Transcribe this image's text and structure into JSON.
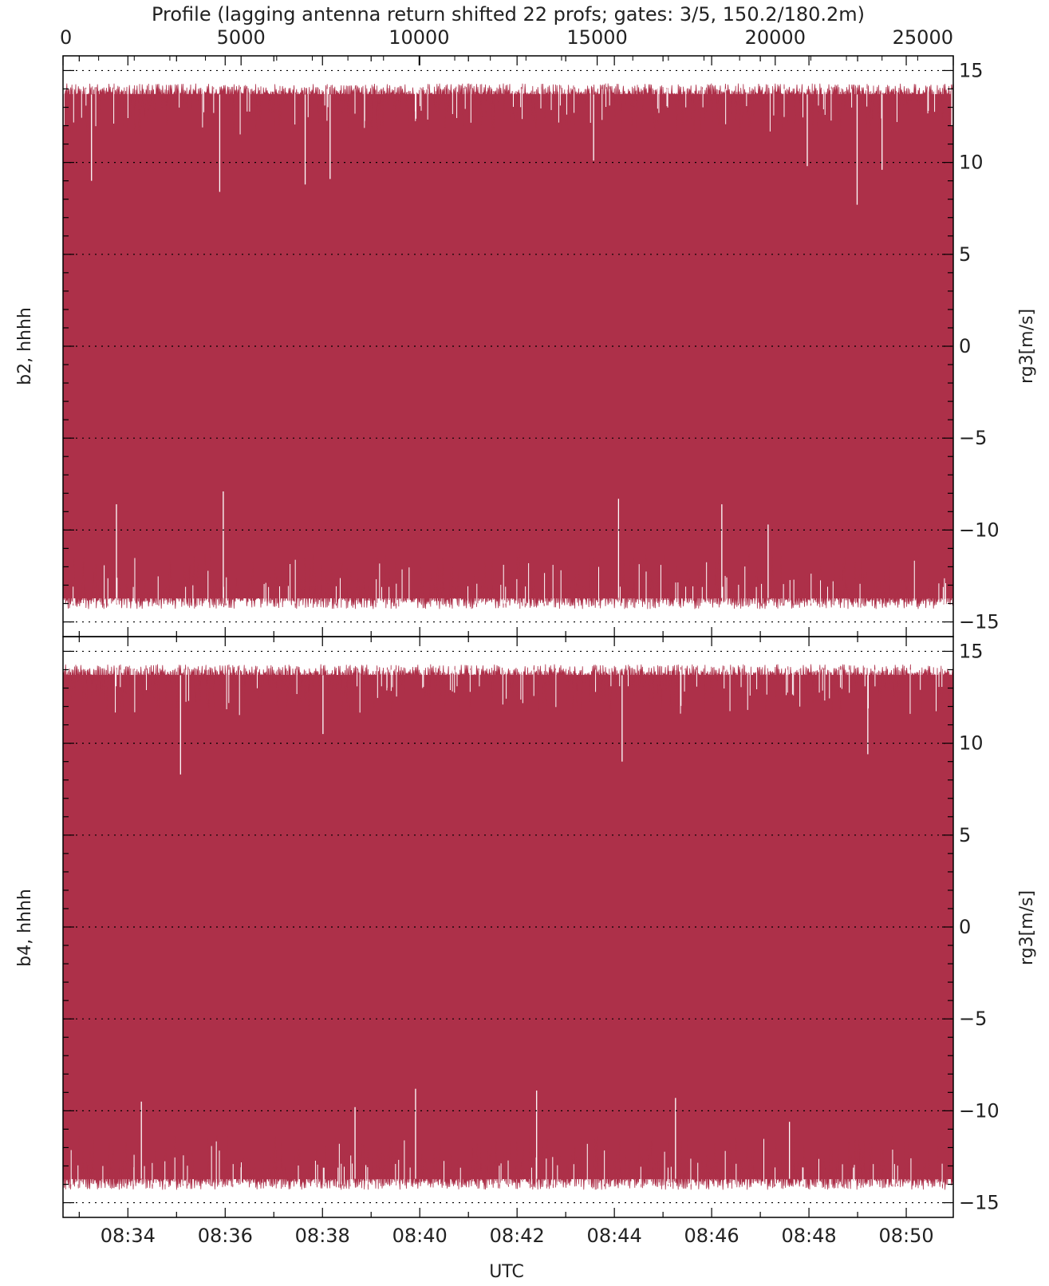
{
  "chart_data": {
    "type": "line",
    "title": "Profile (lagging antenna return shifted 22 profs; gates: 3/5, 150.2/180.2m)",
    "top_axis": {
      "ticks": [
        "0",
        "5000",
        "10000",
        "15000",
        "20000",
        "25000"
      ],
      "range": [
        0,
        25000
      ]
    },
    "xlabel": "UTC",
    "x_ticks": [
      "08:34",
      "08:36",
      "08:38",
      "08:40",
      "08:42",
      "08:44",
      "08:46",
      "08:48",
      "08:50"
    ],
    "x_range": [
      "08:32:40",
      "08:50:58"
    ],
    "grid": "dotted horizontal",
    "color": "#ad3049",
    "panels": [
      {
        "label": "b2, hhhh",
        "ylabel": "rg3[m/s]",
        "ylim": [
          -15.8,
          15.8
        ],
        "y_ticks": [
          "15",
          "10",
          "5",
          "0",
          "−5",
          "−10",
          "−15"
        ],
        "envelope_range": [
          -14.3,
          14.3
        ],
        "typical_upper": 13.7,
        "typical_lower": -13.7,
        "notable_dips_from_top": [
          {
            "profile": 800,
            "value": 9.0
          },
          {
            "profile": 4400,
            "value": 8.4
          },
          {
            "profile": 6800,
            "value": 8.8
          },
          {
            "profile": 7500,
            "value": 9.1
          },
          {
            "profile": 14900,
            "value": 10.1
          },
          {
            "profile": 20900,
            "value": 9.8
          },
          {
            "profile": 22300,
            "value": 7.7
          },
          {
            "profile": 23000,
            "value": 9.6
          }
        ],
        "notable_spikes_from_bottom": [
          {
            "profile": 1500,
            "value": -8.6
          },
          {
            "profile": 4500,
            "value": -7.9
          },
          {
            "profile": 15600,
            "value": -8.3
          },
          {
            "profile": 18500,
            "value": -8.6
          },
          {
            "profile": 19800,
            "value": -9.7
          }
        ]
      },
      {
        "label": "b4, hhhh",
        "ylabel": "rg3[m/s]",
        "ylim": [
          -15.8,
          15.8
        ],
        "y_ticks": [
          "15",
          "10",
          "5",
          "0",
          "−5",
          "−10",
          "−15"
        ],
        "envelope_range": [
          -14.3,
          14.3
        ],
        "typical_upper": 13.7,
        "typical_lower": -13.7,
        "notable_dips_from_top": [
          {
            "profile": 3300,
            "value": 8.3
          },
          {
            "profile": 7300,
            "value": 10.5
          },
          {
            "profile": 15700,
            "value": 9.0
          },
          {
            "profile": 22600,
            "value": 9.4
          }
        ],
        "notable_spikes_from_bottom": [
          {
            "profile": 2200,
            "value": -9.5
          },
          {
            "profile": 8200,
            "value": -9.8
          },
          {
            "profile": 9900,
            "value": -8.8
          },
          {
            "profile": 13300,
            "value": -8.9
          },
          {
            "profile": 17200,
            "value": -9.3
          },
          {
            "profile": 20400,
            "value": -10.6
          }
        ]
      }
    ]
  }
}
